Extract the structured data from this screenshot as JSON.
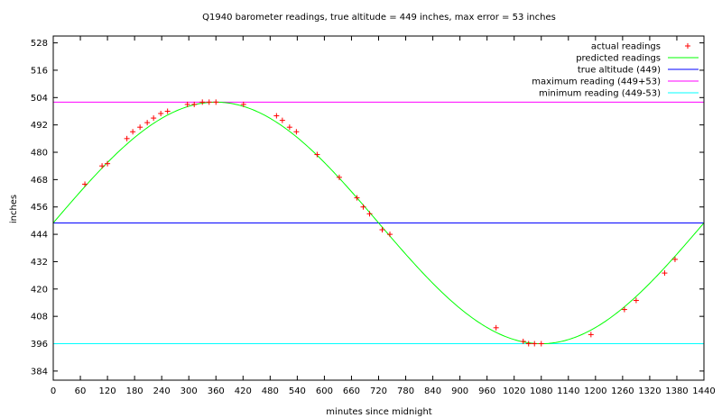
{
  "chart_data": {
    "type": "line",
    "title": "Q1940 barometer readings, true altitude = 449 inches, max error = 53 inches",
    "xlabel": "minutes since midnight",
    "ylabel": "inches",
    "xlim": [
      0,
      1440
    ],
    "ylim": [
      380,
      531
    ],
    "x_ticks": [
      0,
      60,
      120,
      180,
      240,
      300,
      360,
      420,
      480,
      540,
      600,
      660,
      720,
      780,
      840,
      900,
      960,
      1020,
      1080,
      1140,
      1200,
      1260,
      1320,
      1380,
      1440
    ],
    "y_ticks": [
      384,
      396,
      408,
      420,
      432,
      444,
      456,
      468,
      480,
      492,
      504,
      516,
      528
    ],
    "grid": false,
    "legend_position": "top-right",
    "legend": [
      {
        "label": "actual readings",
        "color": "#ff0000",
        "style": "point"
      },
      {
        "label": "predicted readings",
        "color": "#00ff00",
        "style": "line"
      },
      {
        "label": "true altitude (449)",
        "color": "#0000ff",
        "style": "line"
      },
      {
        "label": "maximum reading (449+53)",
        "color": "#ff00ff",
        "style": "line"
      },
      {
        "label": "minimum reading (449-53)",
        "color": "#00ffff",
        "style": "line"
      }
    ],
    "series": [
      {
        "name": "actual readings",
        "color": "#ff0000",
        "points": [
          [
            70,
            466
          ],
          [
            108,
            474
          ],
          [
            120,
            475
          ],
          [
            163,
            486
          ],
          [
            176,
            489
          ],
          [
            192,
            491
          ],
          [
            208,
            493
          ],
          [
            222,
            495
          ],
          [
            238,
            497
          ],
          [
            253,
            498
          ],
          [
            297,
            501
          ],
          [
            312,
            501
          ],
          [
            330,
            502
          ],
          [
            345,
            502
          ],
          [
            360,
            502
          ],
          [
            421,
            501
          ],
          [
            494,
            496
          ],
          [
            507,
            494
          ],
          [
            523,
            491
          ],
          [
            538,
            489
          ],
          [
            584,
            479
          ],
          [
            633,
            469
          ],
          [
            672,
            460
          ],
          [
            686,
            456
          ],
          [
            700,
            453
          ],
          [
            728,
            446
          ],
          [
            745,
            444
          ],
          [
            980,
            403
          ],
          [
            1040,
            397
          ],
          [
            1052,
            396
          ],
          [
            1065,
            396
          ],
          [
            1080,
            396
          ],
          [
            1190,
            400
          ],
          [
            1264,
            411
          ],
          [
            1290,
            415
          ],
          [
            1353,
            427
          ],
          [
            1376,
            433
          ]
        ]
      },
      {
        "name": "predicted readings",
        "color": "#00ff00",
        "function": "449 + 53 * sin(2*pi*x/1440)"
      },
      {
        "name": "true altitude (449)",
        "color": "#0000ff",
        "y": 449
      },
      {
        "name": "maximum reading (449+53)",
        "color": "#ff00ff",
        "y": 502
      },
      {
        "name": "minimum reading (449-53)",
        "color": "#00ffff",
        "y": 396
      }
    ]
  }
}
